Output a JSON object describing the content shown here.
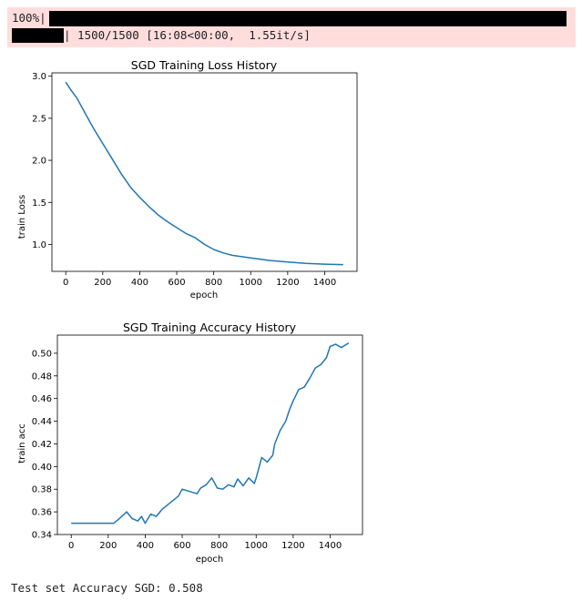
{
  "progress": {
    "percent_text": "100%|",
    "stats_text": "| 1500/1500 [16:08<00:00,  1.55it/s]",
    "fraction": 1.0
  },
  "colors": {
    "stderr_bg": "#ffdddd",
    "series": "#1f77b4",
    "bar": "#000000"
  },
  "chart_data": [
    {
      "type": "line",
      "title": "SGD Training Loss History",
      "xlabel": "epoch",
      "ylabel": "train Loss",
      "xlim": [
        -75,
        1575
      ],
      "ylim": [
        0.68,
        3.04
      ],
      "xticks": [
        0,
        200,
        400,
        600,
        800,
        1000,
        1200,
        1400
      ],
      "yticks": [
        1.0,
        1.5,
        2.0,
        2.5,
        3.0
      ],
      "ytick_labels": [
        "1.0",
        "1.5",
        "2.0",
        "2.5",
        "3.0"
      ],
      "grid": false,
      "series": [
        {
          "x": [
            0,
            30,
            60,
            100,
            150,
            200,
            250,
            300,
            350,
            400,
            450,
            500,
            550,
            600,
            650,
            700,
            750,
            800,
            850,
            900,
            1000,
            1100,
            1200,
            1300,
            1400,
            1500
          ],
          "y": [
            2.93,
            2.83,
            2.74,
            2.58,
            2.38,
            2.2,
            2.02,
            1.84,
            1.68,
            1.56,
            1.45,
            1.35,
            1.27,
            1.2,
            1.13,
            1.08,
            1.0,
            0.94,
            0.9,
            0.87,
            0.84,
            0.81,
            0.79,
            0.775,
            0.765,
            0.76
          ]
        }
      ]
    },
    {
      "type": "line",
      "title": "SGD Training Accuracy History",
      "xlabel": "epoch",
      "ylabel": "train acc",
      "xlim": [
        -75,
        1575
      ],
      "ylim": [
        0.34,
        0.516
      ],
      "xticks": [
        0,
        200,
        400,
        600,
        800,
        1000,
        1200,
        1400
      ],
      "yticks": [
        0.34,
        0.36,
        0.38,
        0.4,
        0.42,
        0.44,
        0.46,
        0.48,
        0.5
      ],
      "ytick_labels": [
        "0.34",
        "0.36",
        "0.38",
        "0.40",
        "0.42",
        "0.44",
        "0.46",
        "0.48",
        "0.50"
      ],
      "grid": false,
      "series": [
        {
          "x": [
            0,
            100,
            200,
            230,
            260,
            300,
            330,
            360,
            380,
            400,
            430,
            460,
            490,
            520,
            550,
            580,
            600,
            640,
            680,
            700,
            730,
            760,
            790,
            820,
            850,
            880,
            900,
            930,
            960,
            990,
            1000,
            1030,
            1060,
            1090,
            1100,
            1130,
            1160,
            1180,
            1200,
            1230,
            1260,
            1290,
            1320,
            1350,
            1380,
            1400,
            1430,
            1460,
            1490,
            1500
          ],
          "y": [
            0.35,
            0.35,
            0.35,
            0.35,
            0.354,
            0.36,
            0.354,
            0.352,
            0.356,
            0.35,
            0.358,
            0.356,
            0.362,
            0.366,
            0.37,
            0.374,
            0.38,
            0.378,
            0.376,
            0.381,
            0.384,
            0.39,
            0.381,
            0.38,
            0.384,
            0.382,
            0.389,
            0.383,
            0.39,
            0.385,
            0.39,
            0.408,
            0.404,
            0.41,
            0.42,
            0.432,
            0.44,
            0.45,
            0.458,
            0.468,
            0.47,
            0.478,
            0.487,
            0.49,
            0.496,
            0.506,
            0.508,
            0.505,
            0.508,
            0.509
          ]
        }
      ]
    }
  ],
  "result": {
    "text": "Test set Accuracy SGD: 0.508"
  }
}
